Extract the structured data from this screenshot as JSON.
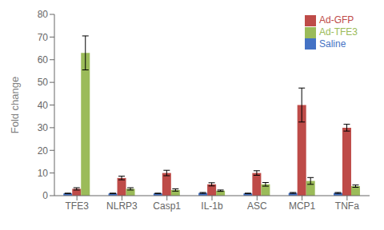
{
  "chart_data": {
    "type": "bar",
    "categories": [
      "TFE3",
      "NLRP3",
      "Casp1",
      "IL-1b",
      "ASC",
      "MCP1",
      "TNFa"
    ],
    "series": [
      {
        "name": "Saline",
        "color": "#4472C4",
        "values": [
          1.0,
          1.0,
          1.0,
          1.2,
          1.0,
          1.2,
          1.2
        ],
        "errors": [
          0.1,
          0.1,
          0.1,
          0.2,
          0.1,
          0.2,
          0.2
        ]
      },
      {
        "name": "Ad-GFP",
        "color": "#BE4B48",
        "values": [
          3.0,
          7.8,
          10.0,
          5.0,
          10.0,
          40.0,
          30.0
        ],
        "errors": [
          0.5,
          0.8,
          1.2,
          0.7,
          1.0,
          7.5,
          1.5
        ]
      },
      {
        "name": "Ad-TFE3",
        "color": "#9BBB59",
        "values": [
          63.0,
          3.0,
          2.5,
          2.2,
          5.0,
          6.5,
          4.2
        ],
        "errors": [
          7.5,
          0.5,
          0.5,
          0.3,
          0.8,
          1.5,
          0.5
        ]
      }
    ],
    "ylabel": "Fold change",
    "ylim": [
      0,
      80
    ],
    "yticks": [
      0,
      10,
      20,
      30,
      40,
      50,
      60,
      70,
      80
    ],
    "grid": false,
    "legend": "upper right"
  }
}
